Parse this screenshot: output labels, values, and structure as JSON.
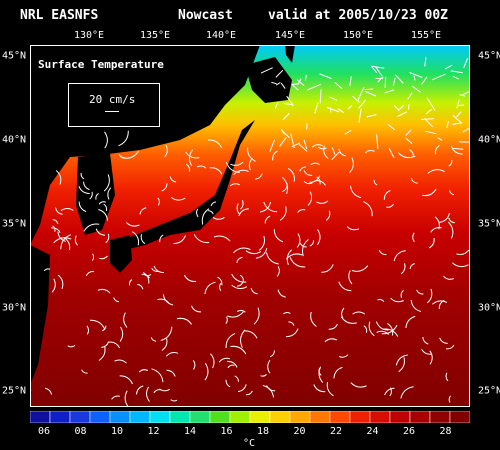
{
  "header": {
    "source": "NRL EASNFS",
    "kind": "Nowcast",
    "valid": "valid at 2005/10/23 00Z"
  },
  "map": {
    "variable_label": "Surface Temperature",
    "vector_scale_label": "20 cm/s",
    "lon_labels": [
      "130°E",
      "135°E",
      "140°E",
      "145°E",
      "150°E",
      "155°E"
    ],
    "lat_labels": [
      "45°N",
      "40°N",
      "35°N",
      "30°N",
      "25°N"
    ],
    "land_color": "#000000",
    "vector_color": "#ffffff"
  },
  "colorbar": {
    "labels": [
      "06",
      "08",
      "10",
      "12",
      "14",
      "16",
      "18",
      "20",
      "22",
      "24",
      "26",
      "28"
    ],
    "unit": "°C",
    "colors": [
      "#1010a0",
      "#1020c8",
      "#1838e0",
      "#1060ff",
      "#0890ff",
      "#00b8ff",
      "#00e0f0",
      "#00e8b0",
      "#20e070",
      "#50e020",
      "#a0f000",
      "#e8f000",
      "#ffd000",
      "#ffa800",
      "#ff7800",
      "#ff4800",
      "#f02000",
      "#d80c00",
      "#c00000",
      "#a80000",
      "#900000",
      "#800000"
    ]
  }
}
